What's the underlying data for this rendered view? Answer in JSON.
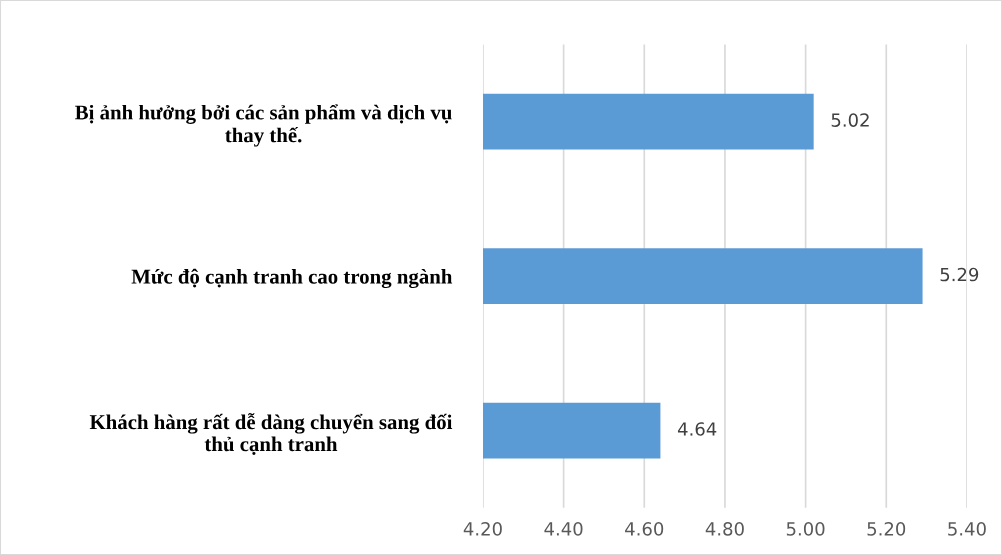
{
  "chart_data": {
    "type": "bar",
    "orientation": "horizontal",
    "categories": [
      "Bị ảnh hưởng bởi các sản phẩm và dịch vụ\nthay thế.",
      "Mức độ cạnh tranh cao trong ngành",
      "Khách hàng rất dễ dàng chuyển sang đối\nthủ cạnh tranh"
    ],
    "values": [
      5.02,
      5.29,
      4.64
    ],
    "color": "#5b9bd5",
    "xlim": [
      4.2,
      5.4
    ],
    "xticks": [
      {
        "value": 4.2,
        "label": "4.20"
      },
      {
        "value": 4.4,
        "label": "4.40"
      },
      {
        "value": 4.6,
        "label": "4.60"
      },
      {
        "value": 4.8,
        "label": "4.80"
      },
      {
        "value": 5.0,
        "label": "5.00"
      },
      {
        "value": 5.2,
        "label": "5.20"
      },
      {
        "value": 5.4,
        "label": "5.40"
      }
    ],
    "grid": "x",
    "data_labels": true
  }
}
